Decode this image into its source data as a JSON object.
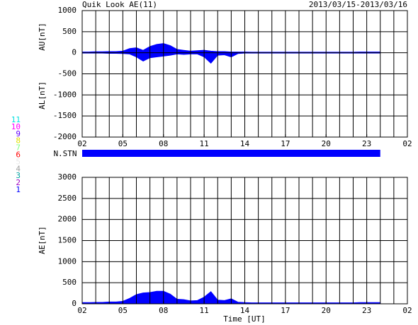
{
  "chart_data": [
    {
      "type": "area",
      "title": "Quik Look AE(11)",
      "subtitle": "2013/03/15-2013/03/16",
      "ylabel_upper": "AU[nT]",
      "ylabel_lower": "AL[nT]",
      "x": [
        2,
        2.5,
        3,
        3.5,
        4,
        4.5,
        5,
        5.5,
        6,
        6.5,
        7,
        7.5,
        8,
        8.5,
        9,
        9.5,
        10,
        10.5,
        11,
        11.5,
        12,
        12.5,
        13,
        13.5,
        14,
        14.5,
        15,
        15.5,
        16,
        16.5,
        17,
        17.5,
        18,
        18.5,
        19,
        19.5,
        20,
        20.5,
        21,
        21.5,
        22,
        22.5,
        23,
        23.5,
        24
      ],
      "series": [
        {
          "color": "#0000ff",
          "values": [
            20,
            20,
            25,
            25,
            30,
            30,
            40,
            100,
            120,
            60,
            150,
            200,
            220,
            170,
            80,
            60,
            40,
            50,
            60,
            40,
            30,
            30,
            20,
            20,
            20,
            15,
            15,
            15,
            15,
            15,
            15,
            15,
            15,
            15,
            15,
            15,
            15,
            15,
            15,
            15,
            15,
            20,
            20,
            20,
            20
          ]
        },
        {
          "color": "#0000ff",
          "values": [
            -10,
            -10,
            -10,
            -10,
            -15,
            -15,
            -20,
            -30,
            -100,
            -200,
            -120,
            -100,
            -80,
            -60,
            -30,
            -40,
            -30,
            -30,
            -100,
            -250,
            -60,
            -50,
            -100,
            -20,
            -10,
            -10,
            -10,
            -10,
            -10,
            -10,
            -10,
            -10,
            -10,
            -10,
            -10,
            -10,
            -10,
            -10,
            -10,
            -10,
            -10,
            -10,
            -10,
            -10,
            -10
          ]
        }
      ],
      "xlim": [
        2,
        26
      ],
      "xticks": [
        {
          "value": 2,
          "label": "02"
        },
        {
          "value": 5,
          "label": "05"
        },
        {
          "value": 8,
          "label": "08"
        },
        11,
        14,
        17,
        20,
        23,
        {
          "value": 26,
          "label": "02"
        }
      ],
      "ylim": [
        -2000,
        1000
      ],
      "yticks": [
        -2000,
        -1500,
        -1000,
        -500,
        0,
        500,
        1000
      ],
      "grid": true,
      "station_label": "N.STN",
      "station_color": "#0000ff",
      "station_legend": [
        {
          "label": "11",
          "color": "#00e0e0"
        },
        {
          "label": "10",
          "color": "#ff00ff"
        },
        {
          "label": "9",
          "color": "#6000ff"
        },
        {
          "label": "8",
          "color": "#e0e000"
        },
        {
          "label": "7",
          "color": "#80ff80"
        },
        {
          "label": "6",
          "color": "#ff0000"
        },
        {
          "label": "5",
          "color": "#e8e8e8"
        },
        {
          "label": "4",
          "color": "#a0a0a0"
        },
        {
          "label": "3",
          "color": "#00a0a0"
        },
        {
          "label": "2",
          "color": "#a000c0"
        },
        {
          "label": "1",
          "color": "#0000ff"
        }
      ]
    },
    {
      "type": "area",
      "ylabel": "AE[nT]",
      "xlabel": "Time [UT]",
      "x": [
        2,
        2.5,
        3,
        3.5,
        4,
        4.5,
        5,
        5.5,
        6,
        6.5,
        7,
        7.5,
        8,
        8.5,
        9,
        9.5,
        10,
        10.5,
        11,
        11.5,
        12,
        12.5,
        13,
        13.5,
        14,
        14.5,
        15,
        15.5,
        16,
        16.5,
        17,
        17.5,
        18,
        18.5,
        19,
        19.5,
        20,
        20.5,
        21,
        21.5,
        22,
        22.5,
        23,
        23.5,
        24
      ],
      "series": [
        {
          "color": "#0000ff",
          "values": [
            30,
            30,
            35,
            35,
            45,
            45,
            60,
            130,
            220,
            260,
            270,
            300,
            300,
            230,
            110,
            100,
            70,
            80,
            160,
            290,
            90,
            80,
            120,
            40,
            30,
            25,
            25,
            25,
            25,
            25,
            25,
            25,
            25,
            25,
            25,
            25,
            25,
            25,
            25,
            25,
            25,
            30,
            30,
            30,
            30
          ]
        }
      ],
      "xlim": [
        2,
        26
      ],
      "xticks": [
        {
          "value": 2,
          "label": "02"
        },
        {
          "value": 5,
          "label": "05"
        },
        {
          "value": 8,
          "label": "08"
        },
        11,
        14,
        17,
        20,
        23,
        {
          "value": 26,
          "label": "02"
        }
      ],
      "ylim": [
        0,
        3000
      ],
      "yticks": [
        0,
        500,
        1000,
        1500,
        2000,
        2500,
        3000
      ],
      "grid": true
    }
  ]
}
